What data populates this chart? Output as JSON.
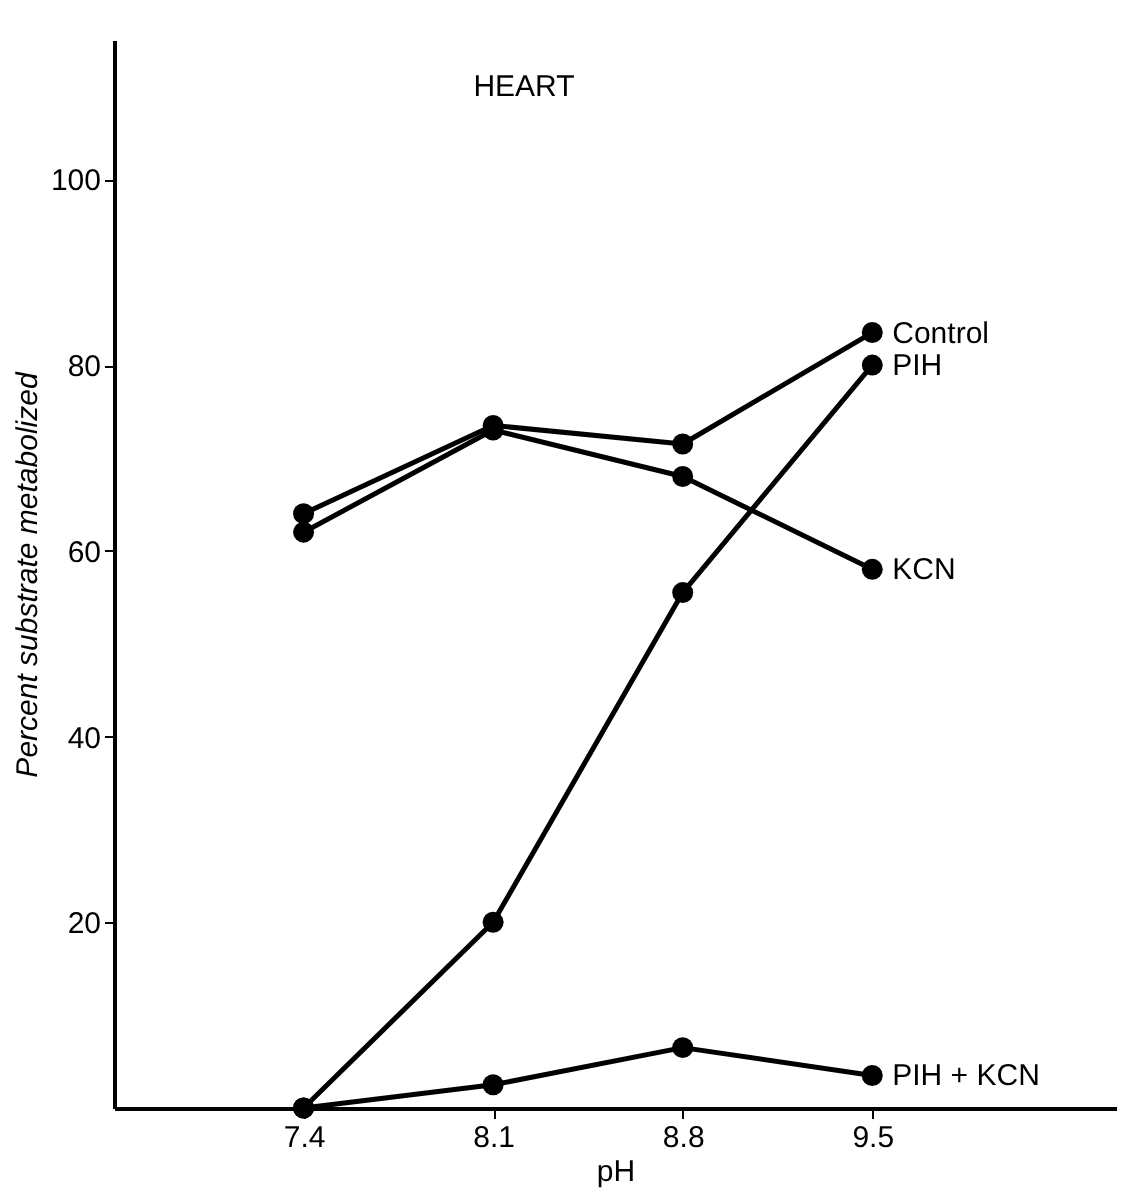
{
  "chart_data": {
    "type": "line",
    "title": "HEART",
    "xlabel": "pH",
    "ylabel": "Percent substrate metabolized",
    "x": [
      7.4,
      8.1,
      8.8,
      9.5
    ],
    "series": [
      {
        "name": "Control",
        "color": "#000000",
        "values": [
          64,
          73.5,
          71.5,
          83.5
        ]
      },
      {
        "name": "PIH",
        "color": "#000000",
        "values": [
          0,
          20,
          55.5,
          80
        ]
      },
      {
        "name": "KCN",
        "color": "#000000",
        "values": [
          62,
          73,
          68,
          58
        ]
      },
      {
        "name": "PIH + KCN",
        "color": "#000000",
        "values": [
          0,
          2.5,
          6.5,
          3.5
        ]
      }
    ],
    "xlim": [
      6.7,
      10.4
    ],
    "xticks": [
      7.4,
      8.1,
      8.8,
      9.5
    ],
    "ylim": [
      0,
      115
    ],
    "yticks": [
      20,
      40,
      60,
      80,
      100
    ],
    "grid": false,
    "legend": false,
    "marker": "circle",
    "line_style": "solid"
  }
}
